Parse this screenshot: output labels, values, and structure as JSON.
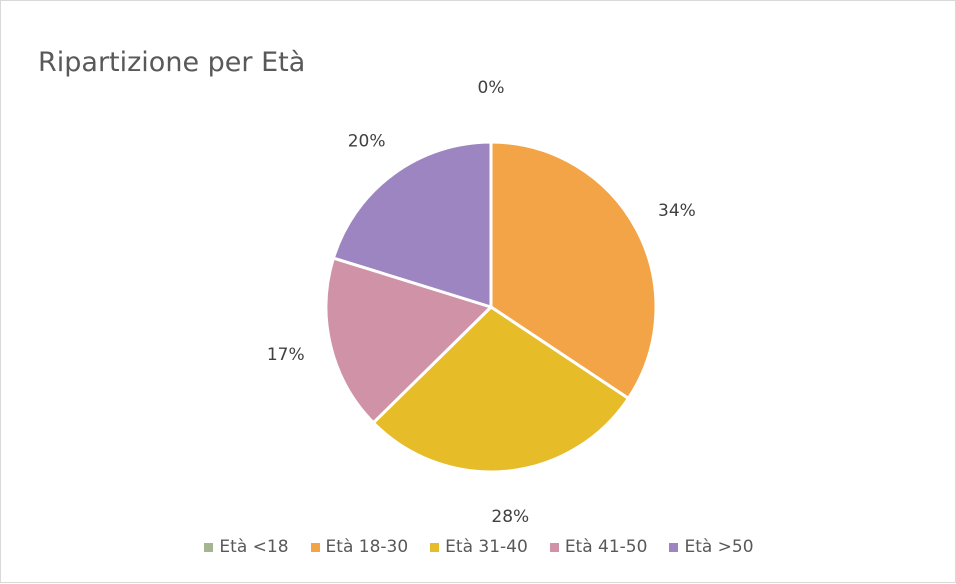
{
  "chart_data": {
    "type": "pie",
    "title": "Ripartizione per Età",
    "categories": [
      "Età <18",
      "Età 18-30",
      "Età 31-40",
      "Età 41-50",
      "Età >50"
    ],
    "values": [
      0,
      34,
      28,
      17,
      20
    ],
    "data_labels": [
      "0%",
      "34%",
      "28%",
      "17%",
      "20%"
    ],
    "colors": [
      "#a5b592",
      "#f3a447",
      "#e7bc29",
      "#d092a7",
      "#9c85c0"
    ],
    "legend_position": "bottom",
    "start_angle": "12 o'clock, clockwise"
  }
}
